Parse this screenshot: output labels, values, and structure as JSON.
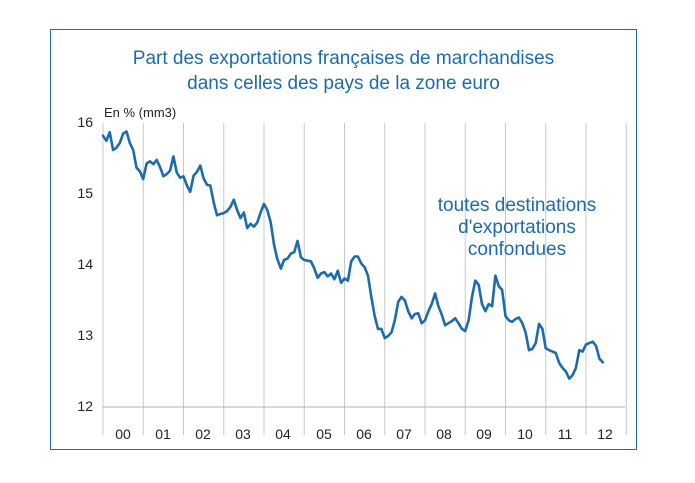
{
  "chart_data": {
    "type": "line",
    "title": [
      "Part des exportations françaises de marchandises",
      "dans celles des pays de la zone euro"
    ],
    "ylabel": "En % (mm3)",
    "xlabel": "",
    "ylim": [
      12,
      16
    ],
    "yticks": [
      "12",
      "13",
      "14",
      "15",
      "16"
    ],
    "x_categories": [
      "00",
      "01",
      "02",
      "03",
      "04",
      "05",
      "06",
      "07",
      "08",
      "09",
      "10",
      "11",
      "12"
    ],
    "grid": true,
    "annotation": [
      "toutes destinations",
      "d'exportations",
      "confondues"
    ],
    "series": [
      {
        "name": "toutes destinations d'exportations confondues",
        "color": "#1a6bb3",
        "x_start": 2000.0,
        "step": 0.0833333,
        "values": [
          15.82,
          15.75,
          15.87,
          15.62,
          15.65,
          15.72,
          15.85,
          15.88,
          15.72,
          15.62,
          15.37,
          15.32,
          15.21,
          15.43,
          15.46,
          15.42,
          15.48,
          15.38,
          15.25,
          15.28,
          15.33,
          15.53,
          15.3,
          15.23,
          15.25,
          15.12,
          15.03,
          15.26,
          15.31,
          15.4,
          15.22,
          15.13,
          15.12,
          14.88,
          14.7,
          14.72,
          14.73,
          14.76,
          14.82,
          14.92,
          14.77,
          14.66,
          14.74,
          14.52,
          14.58,
          14.54,
          14.6,
          14.74,
          14.86,
          14.77,
          14.6,
          14.28,
          14.08,
          13.95,
          14.07,
          14.09,
          14.16,
          14.18,
          14.34,
          14.11,
          14.07,
          14.06,
          14.05,
          13.95,
          13.82,
          13.88,
          13.9,
          13.84,
          13.88,
          13.8,
          13.92,
          13.75,
          13.81,
          13.78,
          14.05,
          14.12,
          14.12,
          14.02,
          13.97,
          13.85,
          13.55,
          13.28,
          13.1,
          13.1,
          12.97,
          13.0,
          13.05,
          13.22,
          13.48,
          13.55,
          13.5,
          13.35,
          13.25,
          13.31,
          13.32,
          13.18,
          13.22,
          13.35,
          13.45,
          13.6,
          13.42,
          13.3,
          13.15,
          13.18,
          13.21,
          13.25,
          13.18,
          13.1,
          13.07,
          13.22,
          13.55,
          13.78,
          13.72,
          13.45,
          13.35,
          13.45,
          13.42,
          13.85,
          13.7,
          13.65,
          13.28,
          13.22,
          13.2,
          13.24,
          13.26,
          13.18,
          13.05,
          12.8,
          12.82,
          12.9,
          13.17,
          13.1,
          12.83,
          12.8,
          12.78,
          12.76,
          12.62,
          12.55,
          12.5,
          12.4,
          12.45,
          12.55,
          12.8,
          12.78,
          12.88,
          12.9,
          12.92,
          12.86,
          12.68,
          12.63
        ]
      }
    ]
  }
}
